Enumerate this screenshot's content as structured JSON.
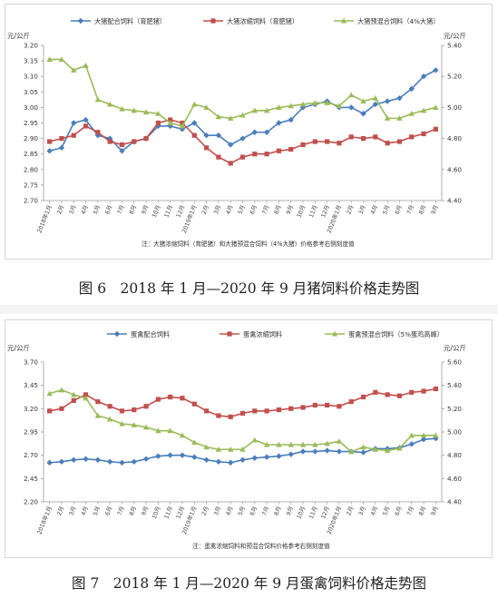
{
  "months": [
    "2018年1月",
    "2月",
    "3月",
    "4月",
    "5月",
    "6月",
    "7月",
    "8月",
    "9月",
    "10月",
    "11月",
    "12月",
    "2019年1月",
    "2月",
    "3月",
    "4月",
    "5月",
    "6月",
    "7月",
    "8月",
    "9月",
    "10月",
    "11月",
    "12月",
    "2020年1月",
    "2月",
    "3月",
    "4月",
    "5月",
    "6月",
    "7月",
    "8月",
    "9月"
  ],
  "chart_data": [
    {
      "type": "line",
      "caption": "图 6　2018 年 1 月—2020 年 9 月猪饲料价格走势图",
      "unit_left": "元/公斤",
      "unit_right": "元/公斤",
      "note": "注：大猪浓缩饲料（育肥猪）和大猪预混合饲料（4%大猪）价格参考右侧刻度值",
      "ylim_left": [
        2.7,
        3.2
      ],
      "yticks_left": [
        "3.20",
        "3.15",
        "3.10",
        "3.05",
        "3.00",
        "2.95",
        "2.90",
        "2.85",
        "2.80",
        "2.75",
        "2.70"
      ],
      "ylim_right": [
        4.4,
        5.4
      ],
      "yticks_right": [
        "5.40",
        "5.20",
        "5.00",
        "4.80",
        "4.60",
        "4.40"
      ],
      "grid": false,
      "legend_position": "top",
      "series": [
        {
          "name": "大猪配合饲料（育肥猪）",
          "axis": "left",
          "color": "#4a7ebb",
          "marker": "diamond",
          "values": [
            2.86,
            2.87,
            2.95,
            2.96,
            2.91,
            2.9,
            2.86,
            2.89,
            2.9,
            2.94,
            2.94,
            2.93,
            2.95,
            2.91,
            2.91,
            2.88,
            2.9,
            2.92,
            2.92,
            2.95,
            2.96,
            3.0,
            3.01,
            3.02,
            3.0,
            3.0,
            2.98,
            3.01,
            3.02,
            3.03,
            3.06,
            3.1,
            3.12
          ]
        },
        {
          "name": "大猪浓缩饲料（育肥猪）",
          "axis": "right",
          "color": "#c0504d",
          "marker": "square",
          "values": [
            4.78,
            4.8,
            4.82,
            4.88,
            4.84,
            4.78,
            4.76,
            4.78,
            4.8,
            4.9,
            4.92,
            4.9,
            4.82,
            4.74,
            4.68,
            4.64,
            4.68,
            4.7,
            4.7,
            4.72,
            4.73,
            4.76,
            4.78,
            4.78,
            4.77,
            4.81,
            4.8,
            4.81,
            4.77,
            4.78,
            4.81,
            4.83,
            4.86
          ]
        },
        {
          "name": "大猪预混合饲料（4%大猪）",
          "axis": "right",
          "color": "#9bbb59",
          "marker": "triangle",
          "values": [
            5.31,
            5.31,
            5.24,
            5.27,
            5.05,
            5.02,
            4.99,
            4.98,
            4.97,
            4.96,
            4.9,
            4.88,
            5.02,
            5.0,
            4.94,
            4.93,
            4.95,
            4.98,
            4.98,
            5.0,
            5.01,
            5.02,
            5.03,
            5.03,
            5.01,
            5.08,
            5.04,
            5.06,
            4.93,
            4.93,
            4.96,
            4.98,
            5.0
          ]
        }
      ]
    },
    {
      "type": "line",
      "caption": "图 7　2018 年 1 月—2020 年 9 月蛋禽饲料价格走势图",
      "unit_left": "元/公斤",
      "unit_right": "元/公斤",
      "note": "注：蛋禽浓缩饲料和预混合饲料价格参考右侧刻度值",
      "ylim_left": [
        2.2,
        3.7
      ],
      "yticks_left": [
        "3.70",
        "3.45",
        "3.20",
        "2.95",
        "2.70",
        "2.45",
        "2.20"
      ],
      "ylim_right": [
        4.4,
        5.6
      ],
      "yticks_right": [
        "5.60",
        "5.40",
        "5.20",
        "5.00",
        "4.80",
        "4.60",
        "4.40"
      ],
      "grid": false,
      "legend_position": "top",
      "series": [
        {
          "name": "蛋禽配合饲料",
          "axis": "left",
          "color": "#4a7ebb",
          "marker": "diamond",
          "values": [
            2.62,
            2.63,
            2.65,
            2.66,
            2.65,
            2.63,
            2.62,
            2.63,
            2.66,
            2.69,
            2.7,
            2.7,
            2.68,
            2.65,
            2.63,
            2.62,
            2.65,
            2.67,
            2.68,
            2.69,
            2.71,
            2.74,
            2.74,
            2.75,
            2.74,
            2.74,
            2.73,
            2.77,
            2.77,
            2.78,
            2.82,
            2.87,
            2.88
          ]
        },
        {
          "name": "蛋禽浓缩饲料",
          "axis": "right",
          "color": "#c0504d",
          "marker": "square",
          "values": [
            5.18,
            5.2,
            5.27,
            5.32,
            5.26,
            5.22,
            5.18,
            5.19,
            5.22,
            5.28,
            5.3,
            5.29,
            5.24,
            5.18,
            5.14,
            5.13,
            5.16,
            5.18,
            5.18,
            5.19,
            5.2,
            5.21,
            5.23,
            5.23,
            5.22,
            5.26,
            5.3,
            5.34,
            5.32,
            5.31,
            5.34,
            5.35,
            5.37
          ]
        },
        {
          "name": "蛋禽预混合饲料（5%蛋鸡高峰）",
          "axis": "right",
          "color": "#9bbb59",
          "marker": "triangle",
          "values": [
            5.33,
            5.36,
            5.32,
            5.29,
            5.14,
            5.11,
            5.07,
            5.06,
            5.04,
            5.01,
            5.01,
            4.97,
            4.91,
            4.87,
            4.85,
            4.85,
            4.85,
            4.93,
            4.89,
            4.89,
            4.89,
            4.89,
            4.89,
            4.9,
            4.92,
            4.83,
            4.87,
            4.85,
            4.84,
            4.86,
            4.97,
            4.97,
            4.97
          ]
        }
      ]
    }
  ]
}
